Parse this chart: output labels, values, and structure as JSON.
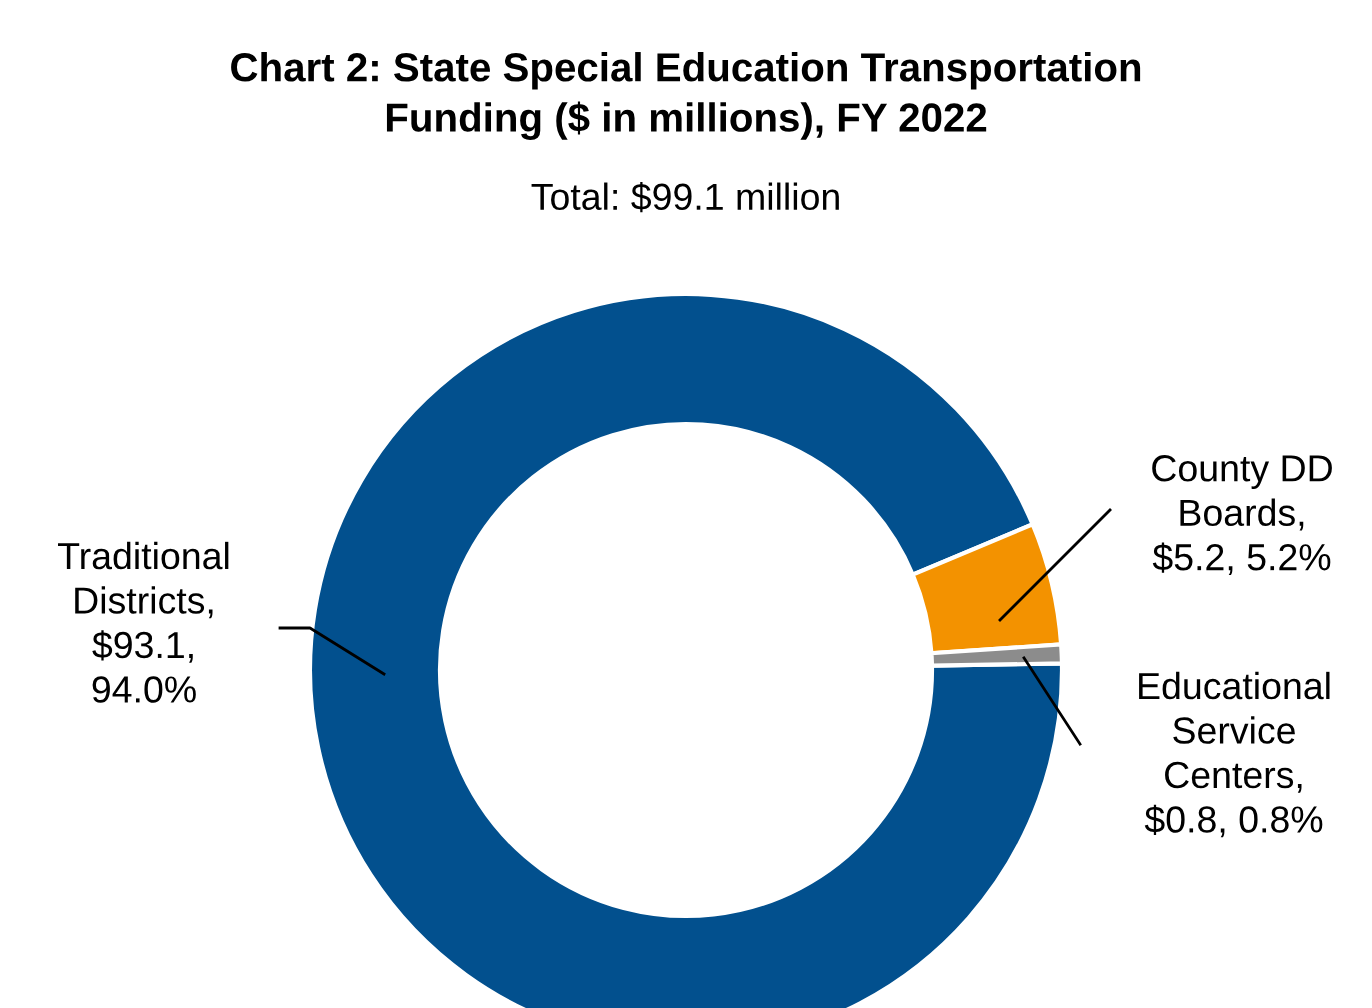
{
  "chart_data": {
    "type": "donut",
    "title": "Chart 2: State Special Education Transportation\nFunding ($ in millions), FY 2022",
    "subtitle": "Total: $99.1 million",
    "categories": [
      "Traditional Districts, $93.1, 94.0%",
      "County DD Boards, $5.2, 5.2%",
      "Educational Service Centers, $0.8, 0.8%"
    ],
    "values": [
      93.1,
      5.2,
      0.8
    ],
    "colors": [
      "#02508e",
      "#f39200",
      "#8c8c8c"
    ],
    "legend": false
  }
}
